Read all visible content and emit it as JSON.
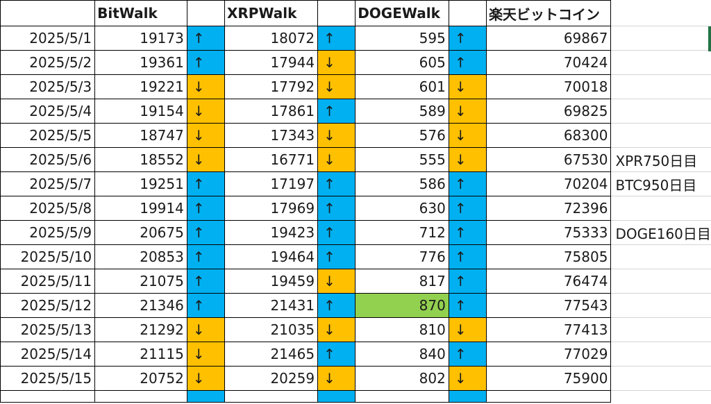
{
  "sheet": {
    "headers": [
      "",
      "BitWalk",
      "",
      "XRPWalk",
      "",
      "DOGEWalk",
      "",
      "楽天ビットコイン",
      ""
    ],
    "colors": {
      "up": "#00b0f0",
      "down": "#ffc000",
      "highlight": "#92d050",
      "selection": "#217346"
    },
    "rows": [
      {
        "date": "2025/5/1",
        "bit": "19173",
        "bit_dir": "↑",
        "xrp": "18072",
        "xrp_dir": "↑",
        "doge": "595",
        "doge_dir": "↑",
        "rakuten": "69867",
        "note": ""
      },
      {
        "date": "2025/5/2",
        "bit": "19361",
        "bit_dir": "↑",
        "xrp": "17944",
        "xrp_dir": "↓",
        "doge": "605",
        "doge_dir": "↑",
        "rakuten": "70424",
        "note": ""
      },
      {
        "date": "2025/5/3",
        "bit": "19221",
        "bit_dir": "↓",
        "xrp": "17792",
        "xrp_dir": "↓",
        "doge": "601",
        "doge_dir": "↓",
        "rakuten": "70018",
        "note": ""
      },
      {
        "date": "2025/5/4",
        "bit": "19154",
        "bit_dir": "↓",
        "xrp": "17861",
        "xrp_dir": "↑",
        "doge": "589",
        "doge_dir": "↓",
        "rakuten": "69825",
        "note": ""
      },
      {
        "date": "2025/5/5",
        "bit": "18747",
        "bit_dir": "↓",
        "xrp": "17343",
        "xrp_dir": "↓",
        "doge": "576",
        "doge_dir": "↓",
        "rakuten": "68300",
        "note": ""
      },
      {
        "date": "2025/5/6",
        "bit": "18552",
        "bit_dir": "↓",
        "xrp": "16771",
        "xrp_dir": "↓",
        "doge": "555",
        "doge_dir": "↓",
        "rakuten": "67530",
        "note": "XPR750日目"
      },
      {
        "date": "2025/5/7",
        "bit": "19251",
        "bit_dir": "↑",
        "xrp": "17197",
        "xrp_dir": "↑",
        "doge": "586",
        "doge_dir": "↑",
        "rakuten": "70204",
        "note": "BTC950日目"
      },
      {
        "date": "2025/5/8",
        "bit": "19914",
        "bit_dir": "↑",
        "xrp": "17969",
        "xrp_dir": "↑",
        "doge": "630",
        "doge_dir": "↑",
        "rakuten": "72396",
        "note": ""
      },
      {
        "date": "2025/5/9",
        "bit": "20675",
        "bit_dir": "↑",
        "xrp": "19423",
        "xrp_dir": "↑",
        "doge": "712",
        "doge_dir": "↑",
        "rakuten": "75333",
        "note": "DOGE160日目"
      },
      {
        "date": "2025/5/10",
        "bit": "20853",
        "bit_dir": "↑",
        "xrp": "19464",
        "xrp_dir": "↑",
        "doge": "776",
        "doge_dir": "↑",
        "rakuten": "75805",
        "note": ""
      },
      {
        "date": "2025/5/11",
        "bit": "21075",
        "bit_dir": "↑",
        "xrp": "19459",
        "xrp_dir": "↓",
        "doge": "817",
        "doge_dir": "↑",
        "rakuten": "76474",
        "note": ""
      },
      {
        "date": "2025/5/12",
        "bit": "21346",
        "bit_dir": "↑",
        "xrp": "21431",
        "xrp_dir": "↑",
        "doge": "870",
        "doge_dir": "↑",
        "rakuten": "77543",
        "note": "",
        "doge_highlight": true
      },
      {
        "date": "2025/5/13",
        "bit": "21292",
        "bit_dir": "↓",
        "xrp": "21035",
        "xrp_dir": "↓",
        "doge": "810",
        "doge_dir": "↓",
        "rakuten": "77413",
        "note": ""
      },
      {
        "date": "2025/5/14",
        "bit": "21115",
        "bit_dir": "↓",
        "xrp": "21465",
        "xrp_dir": "↑",
        "doge": "840",
        "doge_dir": "↑",
        "rakuten": "77029",
        "note": ""
      },
      {
        "date": "2025/5/15",
        "bit": "20752",
        "bit_dir": "↓",
        "xrp": "20259",
        "xrp_dir": "↓",
        "doge": "802",
        "doge_dir": "↓",
        "rakuten": "75900",
        "note": ""
      }
    ],
    "partial_row_dirs": {
      "bit_dir": "↑",
      "xrp_dir": "↑",
      "doge_dir": "↑"
    }
  }
}
